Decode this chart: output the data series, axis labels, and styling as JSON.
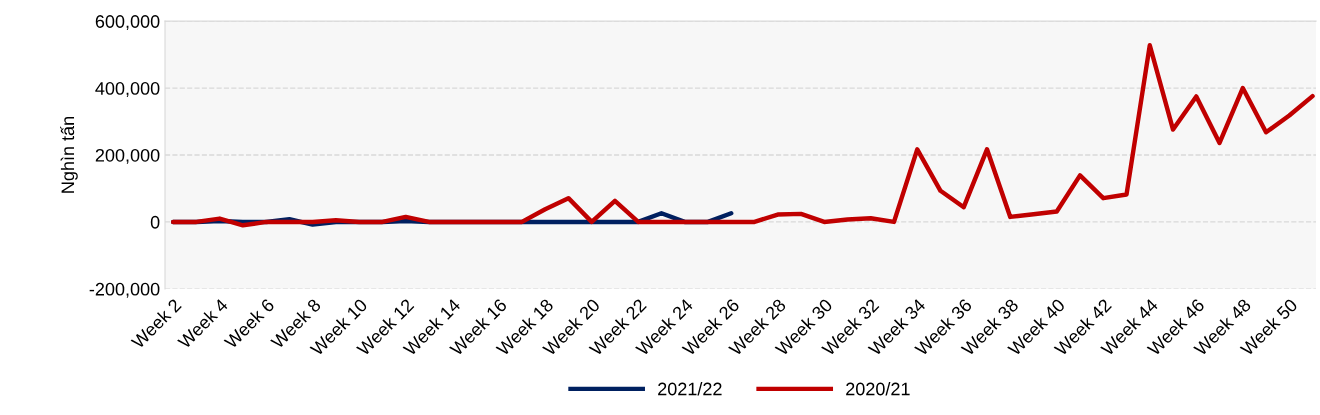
{
  "chart_data": {
    "type": "line",
    "ylabel": "Nghìn tấn",
    "categories": [
      "Week 2",
      null,
      "Week 4",
      null,
      "Week 6",
      null,
      "Week 8",
      null,
      "Week 10",
      null,
      "Week 12",
      null,
      "Week 14",
      null,
      "Week 16",
      null,
      "Week 18",
      null,
      "Week 20",
      null,
      "Week 22",
      null,
      "Week 24",
      null,
      "Week 26",
      null,
      "Week 28",
      null,
      "Week 30",
      null,
      "Week 32",
      null,
      "Week 34",
      null,
      "Week 36",
      null,
      "Week 38",
      null,
      "Week 40",
      null,
      "Week 42",
      null,
      "Week 44",
      null,
      "Week 46",
      null,
      "Week 48",
      null,
      "Week 50",
      null
    ],
    "series": [
      {
        "name": "2021/22",
        "color": "#002060",
        "values": [
          0,
          0,
          3000,
          0,
          0,
          8000,
          -8000,
          0,
          0,
          0,
          3000,
          0,
          0,
          0,
          0,
          0,
          0,
          0,
          0,
          0,
          0,
          26000,
          0,
          0,
          26000,
          null,
          null,
          null,
          null,
          null,
          null,
          null,
          null,
          null,
          null,
          null,
          null,
          null,
          null,
          null,
          null,
          null,
          null,
          null,
          null,
          null,
          null,
          null,
          null,
          null
        ]
      },
      {
        "name": "2020/21",
        "color": "#c00000",
        "values": [
          0,
          0,
          10000,
          -10000,
          0,
          0,
          0,
          5000,
          0,
          0,
          15000,
          0,
          0,
          0,
          0,
          0,
          38000,
          71000,
          0,
          63000,
          0,
          0,
          0,
          0,
          0,
          0,
          22000,
          24000,
          0,
          7000,
          11000,
          0,
          217000,
          93000,
          44000,
          217000,
          15000,
          23000,
          31000,
          139000,
          71000,
          82000,
          528000,
          276000,
          375000,
          236000,
          400000,
          268000,
          318000,
          376000
        ]
      }
    ],
    "ylim": [
      -200000,
      600000
    ],
    "yticks": [
      {
        "value": -200000,
        "label": "-200,000"
      },
      {
        "value": 0,
        "label": "0"
      },
      {
        "value": 200000,
        "label": "200,000"
      },
      {
        "value": 400000,
        "label": "400,000"
      },
      {
        "value": 600000,
        "label": "600,000"
      }
    ],
    "grid": "y",
    "legend": "bottom",
    "line_style": "solid",
    "marker": "none"
  }
}
